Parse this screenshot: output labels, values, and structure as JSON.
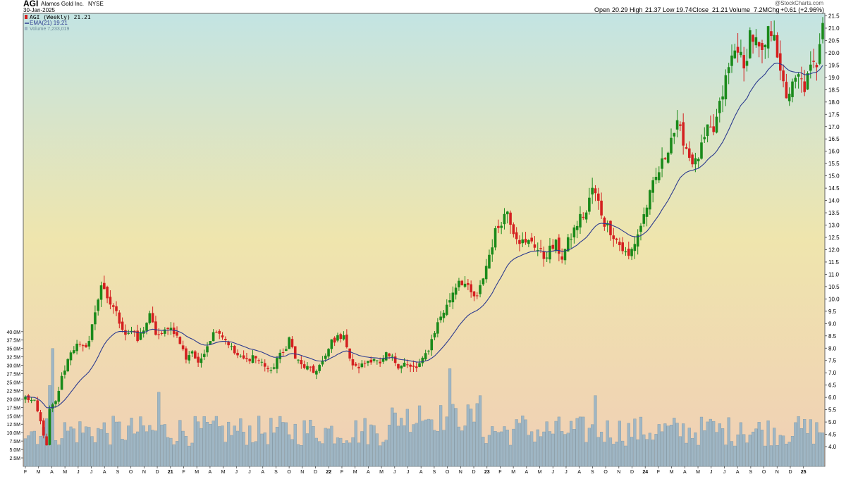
{
  "header": {
    "symbol": "AGI",
    "company": "Alamos Gold Inc.",
    "exchange": "NYSE",
    "date": "30-Jan-2025",
    "watermark": "@StockCharts.com",
    "quote": {
      "open_label": "Open",
      "open": "20.29",
      "high_label": "High",
      "high": "21.37",
      "low_label": "Low",
      "low": "19.74",
      "close_label": "Close",
      "close": "21.21",
      "volume_label": "Volume",
      "volume": "7.2M",
      "chg_label": "Chg",
      "chg": "+0.61 (+2.96%)"
    }
  },
  "legend": {
    "price": "AGI (Weekly) 21.21",
    "ema": "EMA(21) 19.21",
    "volume": "Volume 7,233,019"
  },
  "colors": {
    "up": "#1a8a1a",
    "down": "#d42020",
    "ema": "#2b3a8f",
    "volume_bar": "#9fb6c4",
    "bg_top": "#c3e4e3",
    "bg_mid": "#efe5ad",
    "bg_bottom": "#f0cfb5"
  },
  "chart_data": {
    "type": "candlestick",
    "price_axis": {
      "range": [
        3.2,
        21.6
      ],
      "ticks": [
        "4.0",
        "4.5",
        "5.0",
        "5.5",
        "6.0",
        "6.5",
        "7.0",
        "7.5",
        "8.0",
        "8.5",
        "9.0",
        "9.5",
        "10.0",
        "10.5",
        "11.0",
        "11.5",
        "12.0",
        "12.5",
        "13.0",
        "13.5",
        "14.0",
        "14.5",
        "15.0",
        "15.5",
        "16.0",
        "16.5",
        "17.0",
        "17.5",
        "18.0",
        "18.5",
        "19.0",
        "19.5",
        "20.0",
        "20.5",
        "21.0",
        "21.5"
      ]
    },
    "volume_axis": {
      "range_millions": [
        0,
        41
      ],
      "ticks": [
        "2.5M",
        "5.0M",
        "7.5M",
        "10.0M",
        "12.5M",
        "15.0M",
        "17.5M",
        "20.0M",
        "22.5M",
        "25.0M",
        "27.5M",
        "30.0M",
        "32.5M",
        "35.0M",
        "37.5M",
        "40.0M"
      ]
    },
    "x_axis_labels": [
      "F",
      "M",
      "A",
      "M",
      "J",
      "J",
      "A",
      "S",
      "O",
      "N",
      "D",
      "21",
      "F",
      "M",
      "A",
      "M",
      "J",
      "J",
      "A",
      "S",
      "O",
      "N",
      "D",
      "22",
      "F",
      "M",
      "A",
      "M",
      "J",
      "J",
      "A",
      "S",
      "O",
      "N",
      "D",
      "23",
      "F",
      "M",
      "A",
      "M",
      "J",
      "J",
      "A",
      "S",
      "O",
      "N",
      "D",
      "24",
      "F",
      "M",
      "A",
      "M",
      "J",
      "J",
      "A",
      "S",
      "O",
      "N",
      "D",
      "25"
    ],
    "weeks_per_month": 4.35,
    "price_anchors": [
      [
        0,
        6.0
      ],
      [
        3,
        5.8
      ],
      [
        5,
        5.0
      ],
      [
        7,
        4.0
      ],
      [
        8,
        5.5
      ],
      [
        10,
        5.8
      ],
      [
        12,
        6.8
      ],
      [
        15,
        7.9
      ],
      [
        17,
        8.1
      ],
      [
        19,
        8.0
      ],
      [
        21,
        8.3
      ],
      [
        23,
        9.5
      ],
      [
        25,
        10.6
      ],
      [
        27,
        9.9
      ],
      [
        29,
        9.7
      ],
      [
        31,
        9.1
      ],
      [
        33,
        8.6
      ],
      [
        35,
        8.7
      ],
      [
        37,
        8.3
      ],
      [
        39,
        8.8
      ],
      [
        41,
        9.3
      ],
      [
        43,
        8.6
      ],
      [
        45,
        8.5
      ],
      [
        47,
        8.9
      ],
      [
        49,
        8.7
      ],
      [
        51,
        8.2
      ],
      [
        53,
        7.6
      ],
      [
        55,
        7.9
      ],
      [
        57,
        7.3
      ],
      [
        59,
        7.9
      ],
      [
        61,
        8.4
      ],
      [
        63,
        8.8
      ],
      [
        65,
        8.5
      ],
      [
        67,
        8.2
      ],
      [
        69,
        7.8
      ],
      [
        71,
        7.6
      ],
      [
        73,
        7.5
      ],
      [
        75,
        7.7
      ],
      [
        77,
        7.5
      ],
      [
        79,
        7.3
      ],
      [
        81,
        7.0
      ],
      [
        83,
        7.6
      ],
      [
        85,
        7.8
      ],
      [
        87,
        8.4
      ],
      [
        89,
        7.6
      ],
      [
        91,
        7.3
      ],
      [
        93,
        7.2
      ],
      [
        95,
        7.0
      ],
      [
        97,
        7.3
      ],
      [
        99,
        7.6
      ],
      [
        101,
        8.3
      ],
      [
        103,
        8.4
      ],
      [
        105,
        8.6
      ],
      [
        107,
        7.5
      ],
      [
        109,
        7.2
      ],
      [
        111,
        7.3
      ],
      [
        113,
        7.5
      ],
      [
        115,
        7.6
      ],
      [
        117,
        7.3
      ],
      [
        119,
        7.7
      ],
      [
        121,
        7.6
      ],
      [
        123,
        7.3
      ],
      [
        125,
        7.4
      ],
      [
        127,
        7.2
      ],
      [
        129,
        7.2
      ],
      [
        131,
        7.5
      ],
      [
        133,
        8.0
      ],
      [
        135,
        8.7
      ],
      [
        137,
        9.3
      ],
      [
        139,
        9.7
      ],
      [
        141,
        10.3
      ],
      [
        143,
        10.8
      ],
      [
        145,
        10.6
      ],
      [
        147,
        10.2
      ],
      [
        149,
        10.0
      ],
      [
        151,
        10.9
      ],
      [
        153,
        11.8
      ],
      [
        155,
        12.7
      ],
      [
        157,
        13.2
      ],
      [
        159,
        13.6
      ],
      [
        161,
        12.8
      ],
      [
        163,
        12.4
      ],
      [
        165,
        12.2
      ],
      [
        167,
        12.4
      ],
      [
        169,
        12.0
      ],
      [
        171,
        11.7
      ],
      [
        173,
        12.0
      ],
      [
        175,
        12.2
      ],
      [
        177,
        11.7
      ],
      [
        179,
        12.3
      ],
      [
        181,
        12.8
      ],
      [
        183,
        13.3
      ],
      [
        185,
        13.5
      ],
      [
        187,
        14.5
      ],
      [
        189,
        13.9
      ],
      [
        191,
        13.1
      ],
      [
        193,
        12.8
      ],
      [
        195,
        12.4
      ],
      [
        197,
        12.0
      ],
      [
        199,
        11.7
      ],
      [
        201,
        12.3
      ],
      [
        203,
        13.0
      ],
      [
        205,
        13.8
      ],
      [
        207,
        14.6
      ],
      [
        209,
        15.2
      ],
      [
        211,
        15.8
      ],
      [
        213,
        16.6
      ],
      [
        215,
        17.0
      ],
      [
        217,
        16.5
      ],
      [
        219,
        15.8
      ],
      [
        221,
        15.5
      ],
      [
        223,
        16.1
      ],
      [
        225,
        16.8
      ],
      [
        227,
        16.8
      ],
      [
        229,
        17.8
      ],
      [
        231,
        18.9
      ],
      [
        233,
        19.8
      ],
      [
        235,
        20.3
      ],
      [
        237,
        19.2
      ],
      [
        239,
        20.8
      ],
      [
        241,
        20.4
      ],
      [
        243,
        19.8
      ],
      [
        245,
        20.8
      ],
      [
        247,
        21.0
      ],
      [
        249,
        19.0
      ],
      [
        251,
        18.3
      ],
      [
        253,
        18.6
      ],
      [
        255,
        19.0
      ],
      [
        257,
        18.6
      ],
      [
        259,
        19.3
      ],
      [
        261,
        19.6
      ],
      [
        262,
        20.6
      ],
      [
        263,
        21.2
      ]
    ],
    "volume_spikes_millions": [
      [
        8,
        24
      ],
      [
        9,
        35
      ],
      [
        44,
        22
      ],
      [
        130,
        18
      ],
      [
        133,
        14
      ],
      [
        140,
        29
      ],
      [
        150,
        21
      ],
      [
        164,
        15
      ],
      [
        188,
        21
      ],
      [
        226,
        14
      ],
      [
        236,
        13
      ],
      [
        254,
        13
      ]
    ],
    "ema_period": 21,
    "last_close": 21.21
  }
}
